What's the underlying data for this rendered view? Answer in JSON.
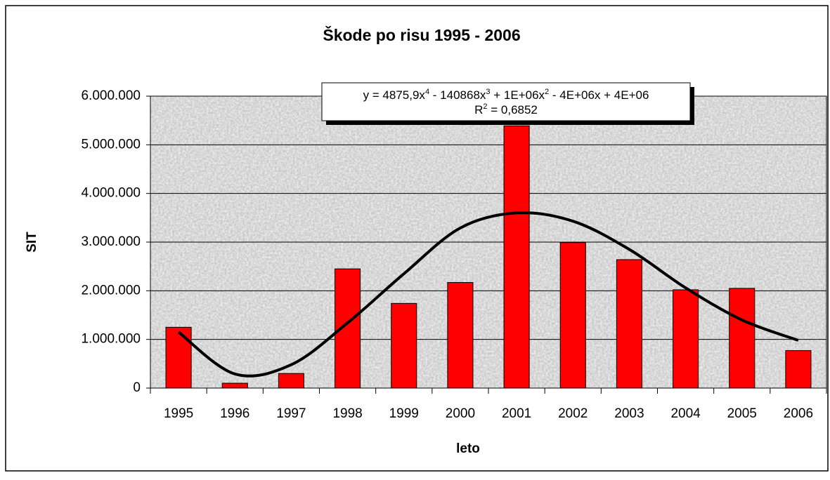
{
  "chart_data": {
    "type": "bar",
    "title": "Škode po risu 1995 - 2006",
    "x_label": "leto",
    "y_label": "SIT",
    "categories": [
      "1995",
      "1996",
      "1997",
      "1998",
      "1999",
      "2000",
      "2001",
      "2002",
      "2003",
      "2004",
      "2005",
      "2006"
    ],
    "values": [
      1250000,
      100000,
      300000,
      2450000,
      1740000,
      2170000,
      5390000,
      2990000,
      2640000,
      2020000,
      2050000,
      770000
    ],
    "color": "#ff0000",
    "trendline": {
      "type": "polynomial",
      "color": "#000000",
      "values": [
        1150000,
        290000,
        480000,
        1340000,
        2350000,
        3290000,
        3600000,
        3430000,
        2850000,
        2060000,
        1400000,
        980000
      ]
    },
    "annotation": {
      "equation": [
        "y = 4875,9x",
        "4",
        " - 140868x",
        "3",
        " + 1E+06x",
        "2",
        " - 4E+06x + 4E+06"
      ],
      "r2": [
        "R",
        "2",
        " = 0,6852"
      ]
    },
    "ylim": [
      0,
      6000000
    ],
    "yticks": [
      0,
      {
        "value": 1000000,
        "label": "1.000.000"
      },
      {
        "value": 2000000,
        "label": "2.000.000"
      },
      {
        "value": 3000000,
        "label": "3.000.000"
      },
      {
        "value": 4000000,
        "label": "4.000.000"
      },
      {
        "value": 5000000,
        "label": "5.000.000"
      },
      {
        "value": 6000000,
        "label": "6.000.000"
      }
    ],
    "grid": true
  }
}
